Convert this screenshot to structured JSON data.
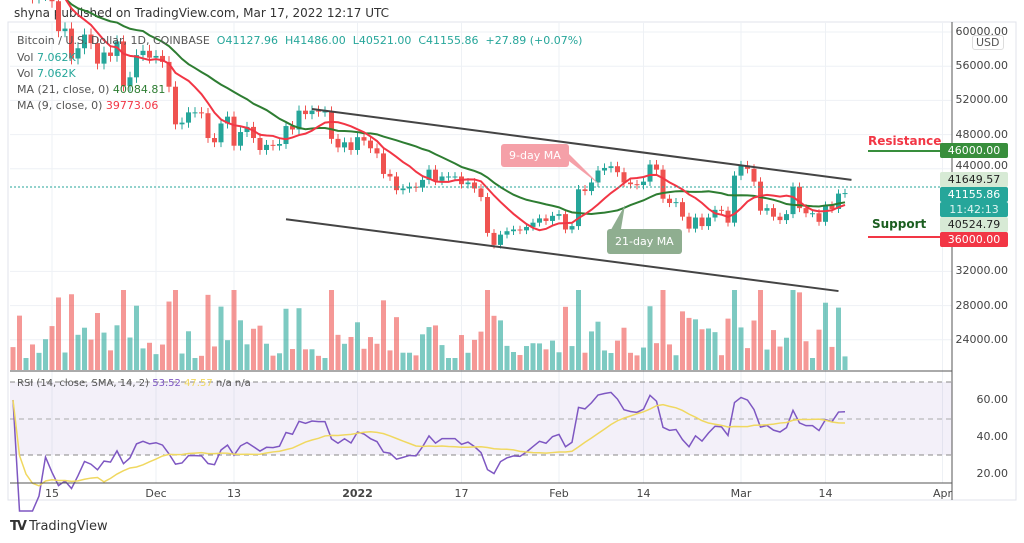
{
  "header": "shyna published on TradingView.com, Mar 17, 2022 12:17 UTC",
  "legend": {
    "symbol": "Bitcoin / U.S. Dollar, 1D, COINBASE",
    "open": "O41127.96",
    "high": "H41486.00",
    "low": "L40521.00",
    "close": "C41155.86",
    "change": "+27.89 (+0.07%)",
    "vol1_label": "Vol",
    "vol1_value": "7.062K",
    "vol2_label": "Vol",
    "vol2_value": "7.062K",
    "ma21_label": "MA (21, close, 0)",
    "ma21_value": "40084.81",
    "ma9_label": "MA (9, close, 0)",
    "ma9_value": "39773.06",
    "rsi_label": "RSI (14, close, SMA, 14, 2)",
    "rsi_value": "53.52",
    "rsi_sma": "47.57",
    "na1": "n/a",
    "na2": "n/a"
  },
  "currency": "USD",
  "annotations": {
    "ma9": "9-day MA",
    "ma21": "21-day MA",
    "resistance": "Resistance",
    "support": "Support"
  },
  "price_tags": {
    "resistance": "46000.00",
    "support": "36000.00",
    "high": "41649.57",
    "last": "41155.86",
    "countdown": "11:42:13",
    "low": "40524.79"
  },
  "colors": {
    "up": "#26a69a",
    "down": "#ef5350",
    "ma21": "#2e7d32",
    "ma9": "#f23645",
    "rsi": "#7e57c2",
    "rsi_sma": "#f0d860",
    "resistance": "#388e3c",
    "support": "#f23645"
  },
  "brand": "TradingView",
  "chart_data": {
    "type": "candlestick",
    "start_date": "2021-11-09",
    "closes_k": [
      67.5,
      64.9,
      64.9,
      64.1,
      64.4,
      65.5,
      63.6,
      60.1,
      60.4,
      56.9,
      58.1,
      59.7,
      58.7,
      56.3,
      57.6,
      57.2,
      58.9,
      53.7,
      54.7,
      57.3,
      57.8,
      57.0,
      57.2,
      56.5,
      53.6,
      49.2,
      49.4,
      50.6,
      50.6,
      50.5,
      47.6,
      47.1,
      49.3,
      50.1,
      46.7,
      48.3,
      48.9,
      47.6,
      46.2,
      46.8,
      46.7,
      46.9,
      49.0,
      48.6,
      50.8,
      50.4,
      50.8,
      50.7,
      50.7,
      47.5,
      46.5,
      47.1,
      46.2,
      47.7,
      47.3,
      46.4,
      45.8,
      43.4,
      43.1,
      41.5,
      41.7,
      41.9,
      41.8,
      42.7,
      43.9,
      42.6,
      43.1,
      43.1,
      43.1,
      42.2,
      42.4,
      41.7,
      40.7,
      36.5,
      35.1,
      36.3,
      36.7,
      36.9,
      36.8,
      37.2,
      37.7,
      38.2,
      37.9,
      38.5,
      38.7,
      36.9,
      37.3,
      41.6,
      41.4,
      42.4,
      43.8,
      44.1,
      44.3,
      43.6,
      42.4,
      42.2,
      42.1,
      42.5,
      44.5,
      43.9,
      40.5,
      40.0,
      40.1,
      38.4,
      37.0,
      38.3,
      37.3,
      38.3,
      39.2,
      39.1,
      37.7,
      43.2,
      44.4,
      44.0,
      42.5,
      39.1,
      39.4,
      38.4,
      38.0,
      38.7,
      41.9,
      39.4,
      38.8,
      38.8,
      37.8,
      39.7,
      39.3,
      41.1,
      41.16
    ],
    "price_ticks": [
      "60000.00",
      "56000.00",
      "52000.00",
      "48000.00",
      "44000.00",
      "32000.00",
      "28000.00",
      "24000.00"
    ],
    "price_tick_values": [
      60000,
      56000,
      52000,
      48000,
      44000,
      32000,
      28000,
      24000
    ],
    "rsi_ticks": [
      "60.00",
      "40.00",
      "20.00"
    ],
    "rsi_tick_values": [
      60,
      40,
      20
    ],
    "time_ticks": [
      {
        "label": "15",
        "day": 6
      },
      {
        "label": "Dec",
        "day": 22
      },
      {
        "label": "13",
        "day": 34
      },
      {
        "label": "2022",
        "day": 53
      },
      {
        "label": "17",
        "day": 69
      },
      {
        "label": "Feb",
        "day": 84
      },
      {
        "label": "14",
        "day": 97
      },
      {
        "label": "Mar",
        "day": 112
      },
      {
        "label": "14",
        "day": 125
      },
      {
        "label": "Apr",
        "day": 143
      }
    ],
    "channel": {
      "upper": [
        [
          46,
          51000
        ],
        [
          129,
          42700
        ]
      ],
      "lower": [
        [
          42,
          38100
        ],
        [
          127,
          29700
        ]
      ]
    },
    "levels": {
      "resistance": 46000,
      "support": 36000
    }
  }
}
